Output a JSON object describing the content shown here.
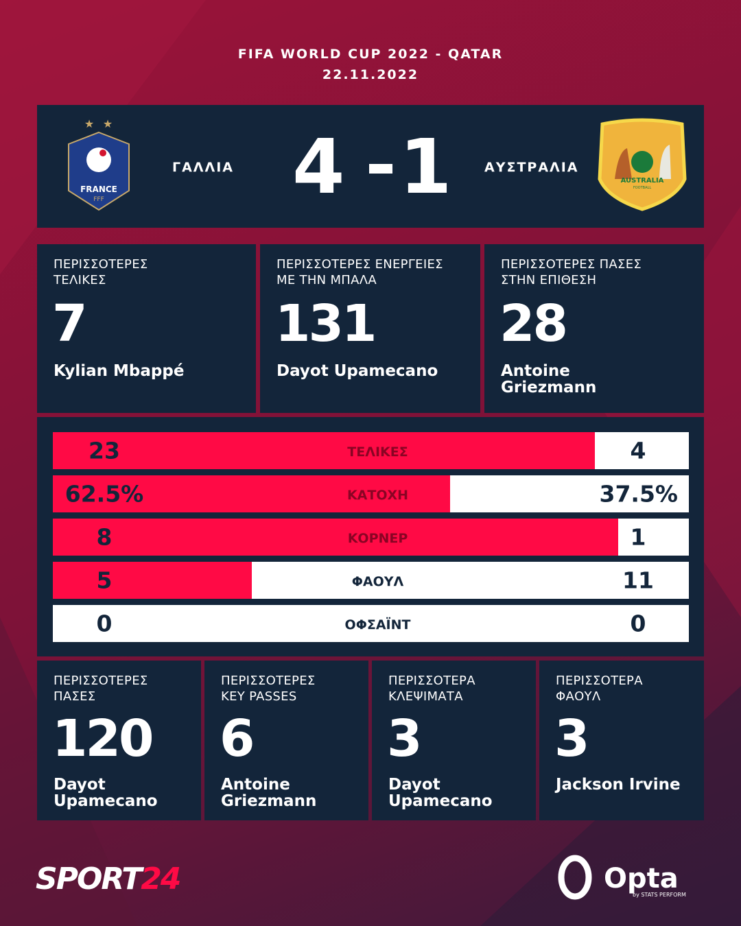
{
  "header": {
    "title": "FIFA WORLD CUP 2022 - QATAR",
    "date": "22.11.2022"
  },
  "match": {
    "home_team": "ΓΑΛΛΙΑ",
    "away_team": "ΑΥΣΤΡΑΛΙΑ",
    "home_score": 4,
    "away_score": 1,
    "home_crest": {
      "name": "FRANCE",
      "sub": "FFF"
    },
    "away_crest": {
      "name": "AUSTRALIA",
      "sub": "FOOTBALL"
    }
  },
  "top_stats": [
    {
      "title": "ΠΕΡΙΣΣΟΤΕΡΕΣ\nΤΕΛΙΚΕΣ",
      "value": 7,
      "player": "Kylian Mbappé"
    },
    {
      "title": "ΠΕΡΙΣΣΟΤΕΡΕΣ ΕΝΕΡΓΕΙΕΣ\nΜΕ ΤΗΝ ΜΠΑΛΑ",
      "value": 131,
      "player": "Dayot Upamecano"
    },
    {
      "title": "ΠΕΡΙΣΣΟΤΕΡΕΣ ΠΑΣΕΣ\nΣΤΗΝ ΕΠΙΘΕΣΗ",
      "value": 28,
      "player": "Antoine\nGriezmann"
    }
  ],
  "comparison": {
    "rows": [
      {
        "label": "ΤΕΛΙΚΕΣ",
        "home": 23,
        "away": 4
      },
      {
        "label": "ΚΑΤΟΧΗ",
        "home": 62.5,
        "away": 37.5,
        "home_label": "62.5%",
        "away_label": "37.5%"
      },
      {
        "label": "ΚΟΡΝΕΡ",
        "home": 8,
        "away": 1
      },
      {
        "label": "ΦΑΟΥΛ",
        "home": 5,
        "away": 11
      },
      {
        "label": "ΟΦΣΑΪΝΤ",
        "home": 0,
        "away": 0
      }
    ]
  },
  "bottom_stats": [
    {
      "title": "ΠΕΡΙΣΣΟΤΕΡΕΣ\nΠΑΣΕΣ",
      "value": 120,
      "player": "Dayot\nUpamecano"
    },
    {
      "title": "ΠΕΡΙΣΣΟΤΕΡΕΣ\nKEY PASSES",
      "value": 6,
      "player": "Antoine\nGriezmann"
    },
    {
      "title": "ΠΕΡΙΣΣΟΤΕΡΑ\nΚΛΕΨΙΜΑΤΑ",
      "value": 3,
      "player": "Dayot\nUpamecano"
    },
    {
      "title": "ΠΕΡΙΣΣΟΤΕΡΑ\nΦΑΟΥΛ",
      "value": 3,
      "player": "Jackson Irvine"
    }
  ],
  "footer": {
    "brand": "SPORT",
    "brand_accent": "24",
    "partner": "Opta",
    "partner_sub": "by STATS PERFORM"
  }
}
